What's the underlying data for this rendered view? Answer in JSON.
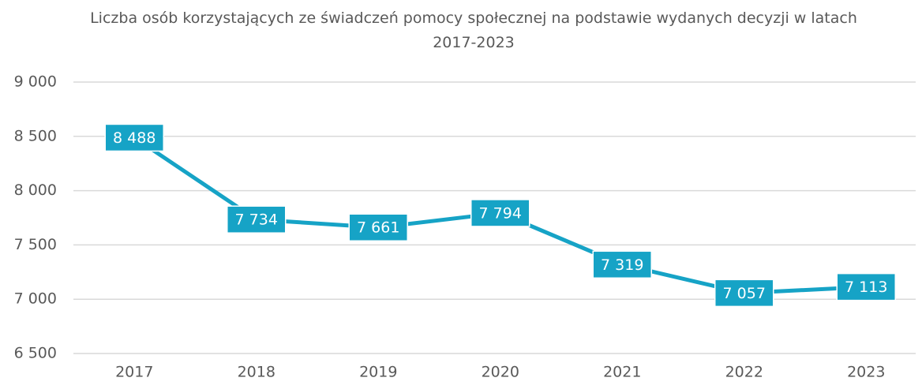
{
  "chart_data": {
    "type": "line",
    "title": "Liczba osób korzystających ze świadczeń pomocy społecznej na podstawie wydanych decyzji w latach 2017-2023",
    "categories": [
      "2017",
      "2018",
      "2019",
      "2020",
      "2021",
      "2022",
      "2023"
    ],
    "series": [
      {
        "name": "Liczba osób",
        "color": "#16a3c6",
        "values": [
          8488,
          7734,
          7661,
          7794,
          7319,
          7057,
          7113
        ],
        "value_labels": [
          "8 488",
          "7 734",
          "7 661",
          "7 794",
          "7 319",
          "7 057",
          "7 113"
        ]
      }
    ],
    "ylim": [
      6500,
      9000
    ],
    "yticks": [
      {
        "value": 6500,
        "label": "6 500"
      },
      {
        "value": 7000,
        "label": "7 000"
      },
      {
        "value": 7500,
        "label": "7 500"
      },
      {
        "value": 8000,
        "label": "8 000"
      },
      {
        "value": 8500,
        "label": "8 500"
      },
      {
        "value": 9000,
        "label": "9 000"
      }
    ],
    "grid": true
  }
}
